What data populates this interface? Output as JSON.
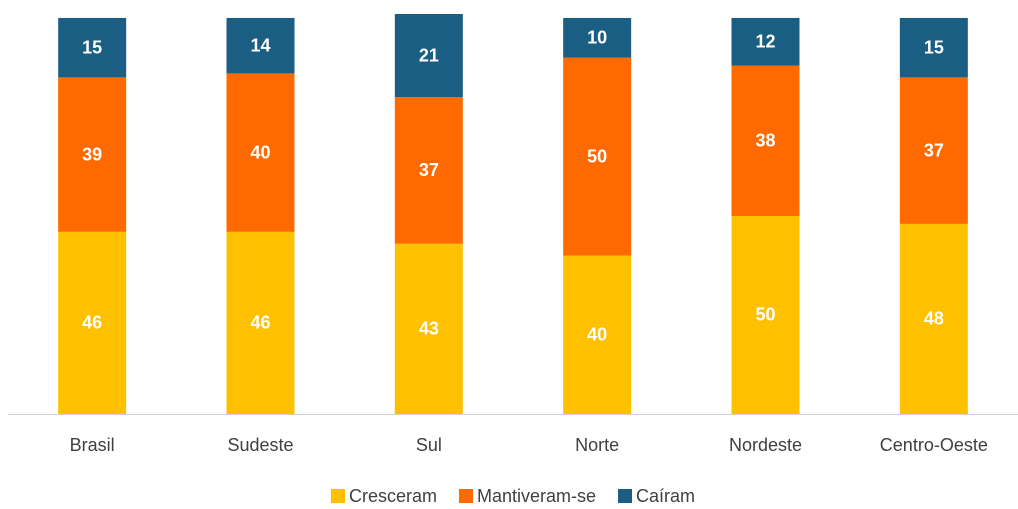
{
  "chart_data": {
    "type": "stacked_bar",
    "categories": [
      "Brasil",
      "Sudeste",
      "Sul",
      "Norte",
      "Nordeste",
      "Centro-Oeste"
    ],
    "series": [
      {
        "name": "Cresceram",
        "color": "#ffc000",
        "values": [
          46,
          46,
          43,
          40,
          50,
          48
        ]
      },
      {
        "name": "Mantiveram-se",
        "color": "#ff6a00",
        "values": [
          39,
          40,
          37,
          50,
          38,
          37
        ]
      },
      {
        "name": "Caíram",
        "color": "#1b5e83",
        "values": [
          15,
          14,
          21,
          10,
          12,
          15
        ]
      }
    ],
    "legend": "bottom"
  }
}
